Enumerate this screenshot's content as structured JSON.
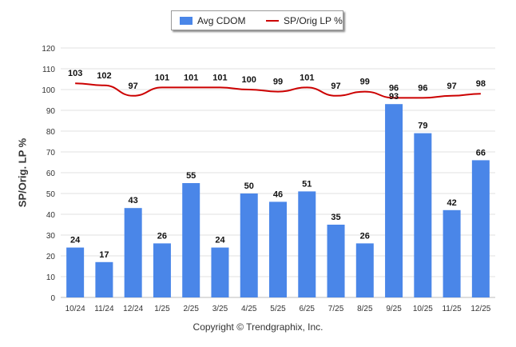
{
  "legend": {
    "bar_label": "Avg CDOM",
    "line_label": "SP/Orig LP %"
  },
  "footer": {
    "copyright": "Copyright © Trendgraphix, Inc."
  },
  "chart_data": {
    "type": "bar",
    "title": "",
    "xlabel": "",
    "ylabel": "SP/Orig. LP %",
    "ylim": [
      0,
      120
    ],
    "yticks": [
      0,
      10,
      20,
      30,
      40,
      50,
      60,
      70,
      80,
      90,
      100,
      110,
      120
    ],
    "grid": true,
    "legend_position": "top-center",
    "categories": [
      "10/24",
      "11/24",
      "12/24",
      "1/25",
      "2/25",
      "3/25",
      "4/25",
      "5/25",
      "6/25",
      "7/25",
      "8/25",
      "9/25",
      "10/25",
      "11/25",
      "12/25"
    ],
    "series": [
      {
        "name": "Avg CDOM",
        "type": "bar",
        "color": "#4a86e8",
        "values": [
          24,
          17,
          43,
          26,
          55,
          24,
          50,
          46,
          51,
          35,
          26,
          93,
          79,
          42,
          66
        ]
      },
      {
        "name": "SP/Orig LP %",
        "type": "line",
        "color": "#cc0000",
        "values": [
          103,
          102,
          97,
          101,
          101,
          101,
          100,
          99,
          101,
          97,
          99,
          96,
          96,
          97,
          98
        ]
      }
    ]
  }
}
